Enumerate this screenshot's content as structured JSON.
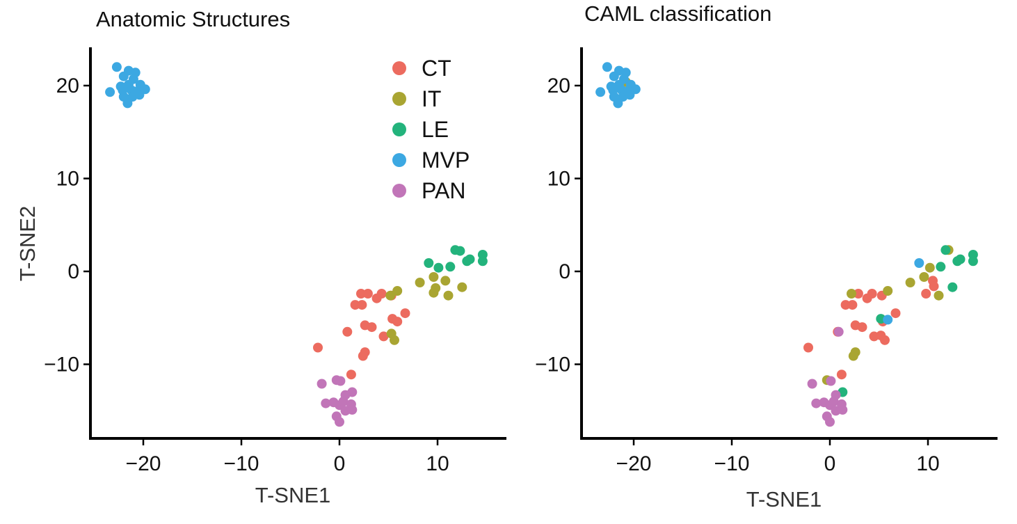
{
  "chart_data": [
    {
      "type": "scatter",
      "title": "Anatomic Structures",
      "xlabel": "T-SNE1",
      "ylabel": "T-SNE2",
      "xlim": [
        -25.5,
        17
      ],
      "ylim": [
        -18.5,
        24
      ],
      "xticks": [
        -20,
        -10,
        0,
        10
      ],
      "yticks": [
        -10,
        0,
        10,
        20
      ],
      "grid": false,
      "legend_position": "top-right",
      "series": [
        {
          "name": "CT",
          "color": "#ec6b5f",
          "points": [
            [
              2.2,
              -2.4
            ],
            [
              2.9,
              -2.4
            ],
            [
              4.3,
              -2.4
            ],
            [
              3.8,
              -2.9
            ],
            [
              5.3,
              -2.6
            ],
            [
              1.6,
              -3.6
            ],
            [
              2.3,
              -3.6
            ],
            [
              5.4,
              -5.1
            ],
            [
              6.7,
              -4.5
            ],
            [
              5.9,
              -5.4
            ],
            [
              2.6,
              -5.8
            ],
            [
              3.3,
              -6.0
            ],
            [
              0.8,
              -6.5
            ],
            [
              4.5,
              -7.0
            ],
            [
              2.6,
              -8.7
            ],
            [
              2.4,
              -9.1
            ],
            [
              -2.2,
              -8.2
            ],
            [
              1.2,
              -11.1
            ]
          ]
        },
        {
          "name": "IT",
          "color": "#a9a532",
          "points": [
            [
              5.2,
              -2.6
            ],
            [
              5.9,
              -2.1
            ],
            [
              8.2,
              -1.2
            ],
            [
              9.6,
              -0.6
            ],
            [
              10.8,
              -1.0
            ],
            [
              9.8,
              -1.8
            ],
            [
              12.5,
              -1.7
            ],
            [
              9.6,
              -2.3
            ],
            [
              11.1,
              -2.6
            ],
            [
              5.3,
              -6.7
            ],
            [
              5.6,
              -7.4
            ]
          ]
        },
        {
          "name": "LE",
          "color": "#23b37c",
          "points": [
            [
              9.1,
              0.9
            ],
            [
              11.8,
              2.3
            ],
            [
              12.3,
              2.2
            ],
            [
              13.0,
              1.1
            ],
            [
              13.3,
              1.3
            ],
            [
              14.6,
              1.8
            ],
            [
              14.6,
              1.1
            ],
            [
              11.3,
              0.5
            ],
            [
              10.1,
              0.4
            ]
          ]
        },
        {
          "name": "MVP",
          "color": "#3ca8e2",
          "points": [
            [
              -22.7,
              22.0
            ],
            [
              -21.5,
              21.6
            ],
            [
              -20.8,
              21.4
            ],
            [
              -22.0,
              21.0
            ],
            [
              -21.0,
              20.7
            ],
            [
              -20.3,
              20.1
            ],
            [
              -21.5,
              20.1
            ],
            [
              -22.3,
              19.9
            ],
            [
              -20.6,
              19.4
            ],
            [
              -19.8,
              19.6
            ],
            [
              -21.2,
              19.5
            ],
            [
              -22.1,
              19.5
            ],
            [
              -23.4,
              19.3
            ],
            [
              -22.0,
              18.8
            ],
            [
              -21.1,
              18.8
            ],
            [
              -20.4,
              19.0
            ],
            [
              -21.6,
              18.1
            ]
          ]
        },
        {
          "name": "PAN",
          "color": "#c175b8",
          "points": [
            [
              -1.8,
              -12.1
            ],
            [
              -0.3,
              -11.7
            ],
            [
              0.1,
              -11.8
            ],
            [
              1.3,
              -13.0
            ],
            [
              0.6,
              -13.3
            ],
            [
              -0.6,
              -14.1
            ],
            [
              0.0,
              -14.4
            ],
            [
              0.4,
              -14.0
            ],
            [
              1.2,
              -14.3
            ],
            [
              -1.4,
              -14.2
            ],
            [
              0.6,
              -15.0
            ],
            [
              1.3,
              -14.9
            ],
            [
              -0.3,
              -15.6
            ],
            [
              0.0,
              -16.2
            ]
          ]
        }
      ]
    },
    {
      "type": "scatter",
      "title": "CAML classification",
      "xlabel": "T-SNE1",
      "ylabel": "",
      "xlim": [
        -25.5,
        17
      ],
      "ylim": [
        -18.5,
        24
      ],
      "xticks": [
        -20,
        -10,
        0,
        10
      ],
      "yticks": [
        -10,
        0,
        10,
        20
      ],
      "grid": false,
      "legend_position": "none",
      "series": [
        {
          "name": "CT",
          "color": "#ec6b5f",
          "points": [
            [
              2.9,
              -2.4
            ],
            [
              4.3,
              -2.4
            ],
            [
              3.8,
              -2.9
            ],
            [
              5.3,
              -2.6
            ],
            [
              1.6,
              -3.6
            ],
            [
              2.3,
              -3.6
            ],
            [
              5.4,
              -5.4
            ],
            [
              6.7,
              -4.5
            ],
            [
              2.6,
              -5.8
            ],
            [
              3.3,
              -6.0
            ],
            [
              4.5,
              -7.0
            ],
            [
              5.2,
              -6.9
            ],
            [
              5.6,
              -7.4
            ],
            [
              -2.2,
              -8.2
            ],
            [
              1.2,
              -11.1
            ],
            [
              10.5,
              -1.0
            ],
            [
              10.6,
              -1.6
            ],
            [
              9.8,
              -2.4
            ],
            [
              0.8,
              -6.5
            ]
          ]
        },
        {
          "name": "IT",
          "color": "#a9a532",
          "points": [
            [
              12.1,
              2.3
            ],
            [
              8.2,
              -1.2
            ],
            [
              9.6,
              -0.6
            ],
            [
              10.2,
              0.4
            ],
            [
              11.1,
              -2.6
            ],
            [
              2.2,
              -2.4
            ],
            [
              5.9,
              -2.1
            ],
            [
              2.6,
              -8.7
            ],
            [
              2.4,
              -9.1
            ],
            [
              -0.3,
              -11.7
            ],
            [
              -20.8,
              20.4
            ]
          ]
        },
        {
          "name": "LE",
          "color": "#23b37c",
          "points": [
            [
              11.8,
              2.3
            ],
            [
              13.0,
              1.1
            ],
            [
              13.3,
              1.3
            ],
            [
              14.6,
              1.8
            ],
            [
              14.6,
              1.1
            ],
            [
              11.3,
              0.5
            ],
            [
              12.5,
              -1.7
            ],
            [
              5.2,
              -5.1
            ],
            [
              1.3,
              -13.0
            ]
          ]
        },
        {
          "name": "MVP",
          "color": "#3ca8e2",
          "points": [
            [
              -22.7,
              22.0
            ],
            [
              -21.5,
              21.6
            ],
            [
              -20.8,
              21.4
            ],
            [
              -22.0,
              21.0
            ],
            [
              -21.0,
              20.7
            ],
            [
              -20.3,
              20.1
            ],
            [
              -21.5,
              20.1
            ],
            [
              -22.3,
              19.9
            ],
            [
              -20.6,
              19.4
            ],
            [
              -19.8,
              19.6
            ],
            [
              -21.2,
              19.5
            ],
            [
              -22.1,
              19.5
            ],
            [
              -23.4,
              19.3
            ],
            [
              -22.0,
              18.8
            ],
            [
              -21.1,
              18.8
            ],
            [
              -20.4,
              19.0
            ],
            [
              -21.6,
              18.1
            ],
            [
              9.1,
              0.9
            ],
            [
              5.9,
              -5.2
            ]
          ]
        },
        {
          "name": "PAN",
          "color": "#c175b8",
          "points": [
            [
              0.1,
              -11.8
            ],
            [
              -1.8,
              -12.1
            ],
            [
              0.6,
              -13.3
            ],
            [
              -0.6,
              -14.1
            ],
            [
              0.0,
              -14.4
            ],
            [
              0.4,
              -14.0
            ],
            [
              1.2,
              -14.3
            ],
            [
              -1.4,
              -14.2
            ],
            [
              0.6,
              -15.0
            ],
            [
              1.3,
              -14.9
            ],
            [
              -0.3,
              -15.6
            ],
            [
              0.0,
              -16.2
            ],
            [
              0.9,
              -6.5
            ]
          ]
        }
      ]
    }
  ]
}
